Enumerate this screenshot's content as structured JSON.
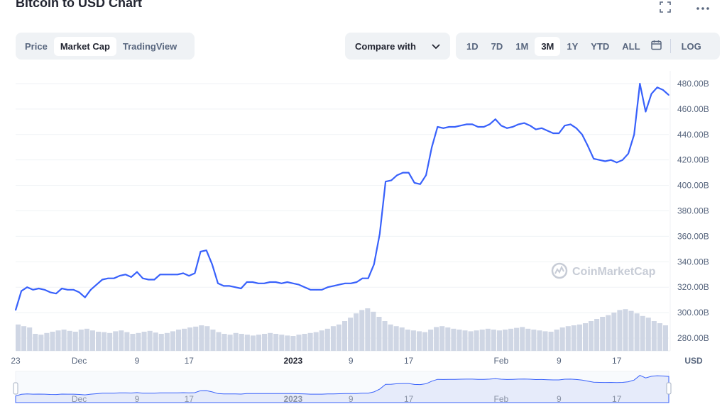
{
  "header": {
    "title": "Bitcoin to USD Chart",
    "expand_icon": "expand-icon",
    "more_icon": "more-icon"
  },
  "view_tabs": [
    {
      "label": "Price",
      "active": false
    },
    {
      "label": "Market Cap",
      "active": true
    },
    {
      "label": "TradingView",
      "active": false
    }
  ],
  "compare": {
    "label": "Compare with",
    "icon": "chevron-down-icon"
  },
  "range_tabs": [
    {
      "label": "1D",
      "active": false
    },
    {
      "label": "7D",
      "active": false
    },
    {
      "label": "1M",
      "active": false
    },
    {
      "label": "3M",
      "active": true
    },
    {
      "label": "1Y",
      "active": false
    },
    {
      "label": "YTD",
      "active": false
    },
    {
      "label": "ALL",
      "active": false
    }
  ],
  "calendar_icon": "calendar-icon",
  "log_label": "LOG",
  "watermark": "CoinMarketCap",
  "colors": {
    "line": "#3861fb",
    "volume": "#cfd6e4",
    "grid": "#eff2f5",
    "navigator_fill": "#e6ebfa"
  },
  "chart_data": {
    "type": "line",
    "series": [
      {
        "values": [
          302,
          317,
          320,
          318,
          319,
          318,
          316,
          315,
          319,
          318,
          318,
          316,
          312,
          318,
          322,
          326,
          327,
          327,
          329,
          330,
          328,
          332,
          327,
          326,
          326,
          330,
          330,
          330,
          330,
          331,
          329,
          331,
          348,
          349,
          338,
          323,
          321,
          321,
          320,
          319,
          324,
          324,
          323,
          323,
          324,
          324,
          323,
          324,
          323,
          322,
          320,
          318,
          318,
          318,
          320,
          321,
          322,
          323,
          323,
          324,
          327,
          327,
          338,
          362,
          403,
          404,
          408,
          410,
          410,
          402,
          401,
          408,
          430,
          446,
          445,
          446,
          446,
          447,
          448,
          448,
          446,
          446,
          448,
          452,
          447,
          445,
          446,
          448,
          449,
          447,
          444,
          445,
          443,
          441,
          441,
          447,
          448,
          445,
          440,
          431,
          421,
          420,
          419,
          420,
          418,
          420,
          425,
          440,
          480,
          458,
          472,
          477,
          475,
          471
        ]
      }
    ],
    "x_tick_labels": [
      "23",
      "Dec",
      "9",
      "17",
      "2023",
      "9",
      "17",
      "Feb",
      "9",
      "17"
    ],
    "x_tick_index": [
      0,
      11,
      21,
      30,
      48,
      58,
      68,
      84,
      94,
      104
    ],
    "y_tick_labels": [
      "480.00B",
      "460.00B",
      "440.00B",
      "420.00B",
      "400.00B",
      "380.00B",
      "360.00B",
      "340.00B",
      "320.00B",
      "300.00B",
      "280.00B"
    ],
    "ylim": [
      270,
      490
    ],
    "y_axis_unit": "USD",
    "volume": [
      62,
      58,
      55,
      40,
      38,
      42,
      45,
      48,
      50,
      47,
      45,
      50,
      52,
      48,
      45,
      44,
      42,
      46,
      48,
      44,
      40,
      42,
      45,
      47,
      43,
      40,
      42,
      46,
      50,
      52,
      55,
      57,
      60,
      58,
      50,
      44,
      40,
      38,
      42,
      40,
      38,
      36,
      38,
      40,
      42,
      40,
      38,
      36,
      35,
      38,
      40,
      42,
      44,
      48,
      52,
      58,
      62,
      70,
      78,
      88,
      96,
      100,
      92,
      80,
      70,
      62,
      58,
      55,
      50,
      48,
      46,
      44,
      50,
      56,
      58,
      55,
      52,
      50,
      48,
      46,
      48,
      50,
      52,
      50,
      48,
      50,
      52,
      54,
      56,
      52,
      50,
      48,
      46,
      45,
      50,
      55,
      58,
      60,
      62,
      65,
      70,
      75,
      80,
      84,
      90,
      96,
      98,
      94,
      88,
      82,
      78,
      70,
      65,
      60
    ],
    "navigator_labels": [
      "Dec",
      "9",
      "17",
      "2023",
      "9",
      "17",
      "Feb",
      "9",
      "17"
    ]
  }
}
